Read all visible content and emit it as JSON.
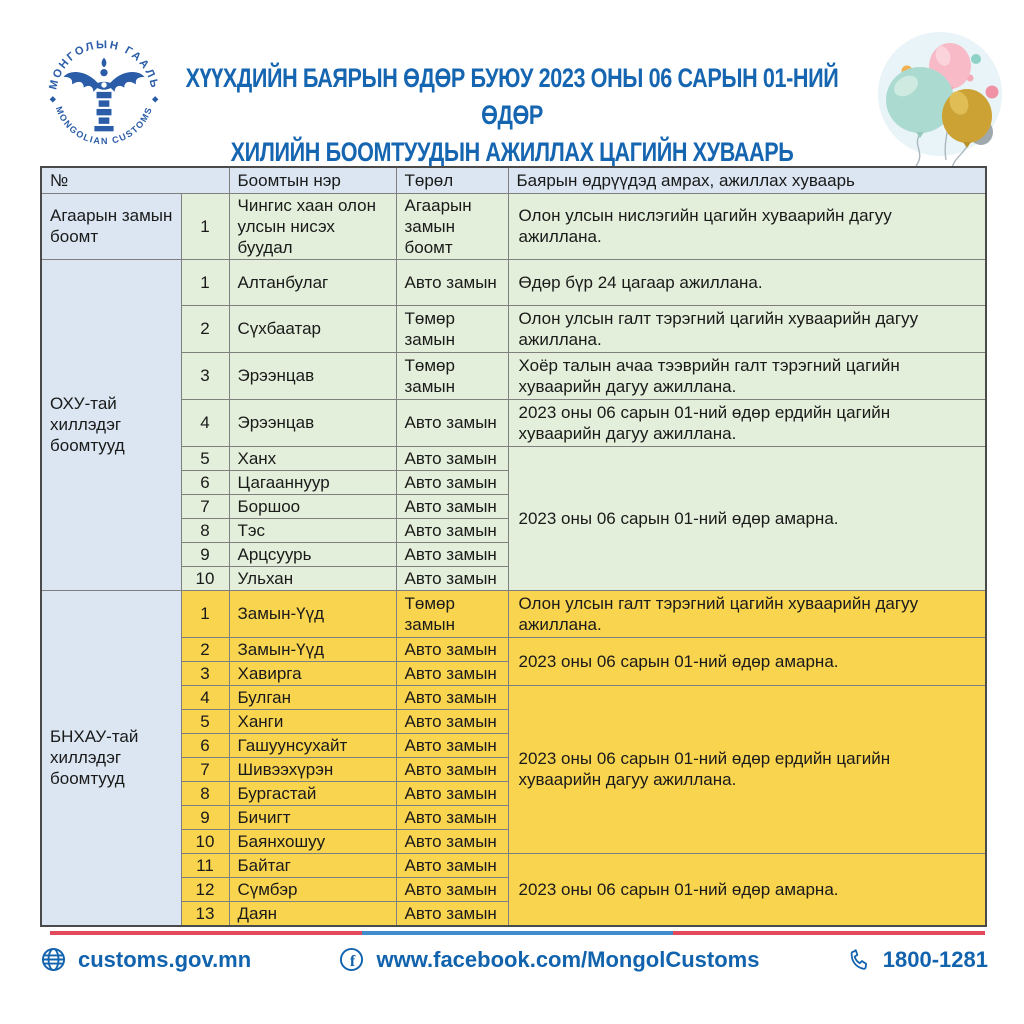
{
  "logo": {
    "arc_top": "МОНГОЛЫН ГААЛЬ",
    "arc_bottom": "MONGOLIAN CUSTOMS"
  },
  "title": {
    "line1": "ХҮҮХДИЙН БАЯРЫН ӨДӨР БУЮУ 2023 ОНЫ 06 САРЫН 01-НИЙ ӨДӨР",
    "line2": "ХИЛИЙН БООМТУУДЫН АЖИЛЛАХ ЦАГИЙН ХУВААРЬ"
  },
  "table": {
    "headers": {
      "no": "№",
      "name": "Боомтын нэр",
      "type": "Төрөл",
      "schedule": "Баярын өдрүүдэд амрах, ажиллах хуваарь"
    },
    "groups": [
      {
        "label": "Агаарын замын боомт",
        "theme": "green",
        "rows": [
          {
            "no": "1",
            "name": "Чингис хаан олон улсын нисэх буудал",
            "type": "Агаарын замын боомт",
            "schedule": "Олон улсын нислэгийн цагийн хуваарийн дагуу ажиллана.",
            "srows": 1
          }
        ]
      },
      {
        "label": "ОХУ-тай хиллэдэг боомтууд",
        "theme": "green",
        "rows": [
          {
            "no": "1",
            "name": "Алтанбулаг",
            "type": "Авто замын",
            "schedule": "Өдөр бүр 24 цагаар ажиллана.",
            "srows": 1
          },
          {
            "no": "2",
            "name": "Сүхбаатар",
            "type": "Төмөр замын",
            "schedule": "Олон улсын галт тэрэгний цагийн хуваарийн дагуу ажиллана.",
            "srows": 1
          },
          {
            "no": "3",
            "name": "Эрээнцав",
            "type": "Төмөр замын",
            "schedule": "Хоёр талын ачаа тээврийн галт тэрэгний цагийн хуваарийн дагуу ажиллана.",
            "srows": 1
          },
          {
            "no": "4",
            "name": "Эрээнцав",
            "type": "Авто замын",
            "schedule": "2023 оны 06 сарын 01-ний өдөр ердийн цагийн хуваарийн дагуу ажиллана.",
            "srows": 1
          },
          {
            "no": "5",
            "name": "Ханх",
            "type": "Авто замын",
            "schedule": "2023 оны 06 сарын 01-ний өдөр амарна.",
            "srows": 6
          },
          {
            "no": "6",
            "name": "Цагааннуур",
            "type": "Авто замын",
            "schedule": null
          },
          {
            "no": "7",
            "name": "Боршоо",
            "type": "Авто замын",
            "schedule": null
          },
          {
            "no": "8",
            "name": "Тэс",
            "type": "Авто замын",
            "schedule": null
          },
          {
            "no": "9",
            "name": "Арцсуурь",
            "type": "Авто замын",
            "schedule": null
          },
          {
            "no": "10",
            "name": "Ульхан",
            "type": "Авто замын",
            "schedule": null
          }
        ]
      },
      {
        "label": "БНХАУ-тай хиллэдэг боомтууд",
        "theme": "yellow",
        "rows": [
          {
            "no": "1",
            "name": "Замын-Үүд",
            "type": "Төмөр замын",
            "schedule": "Олон улсын галт тэрэгний цагийн хуваарийн дагуу ажиллана.",
            "srows": 1
          },
          {
            "no": "2",
            "name": "Замын-Үүд",
            "type": "Авто замын",
            "schedule": "2023 оны 06 сарын 01-ний өдөр амарна.",
            "srows": 2
          },
          {
            "no": "3",
            "name": "Хавирга",
            "type": "Авто замын",
            "schedule": null
          },
          {
            "no": "4",
            "name": "Булган",
            "type": "Авто замын",
            "schedule": "2023 оны 06 сарын 01-ний өдөр ердийн цагийн хуваарийн дагуу ажиллана.",
            "srows": 7
          },
          {
            "no": "5",
            "name": "Ханги",
            "type": "Авто замын",
            "schedule": null
          },
          {
            "no": "6",
            "name": "Гашуунсухайт",
            "type": "Авто замын",
            "schedule": null
          },
          {
            "no": "7",
            "name": "Шивээхүрэн",
            "type": "Авто замын",
            "schedule": null
          },
          {
            "no": "8",
            "name": "Бургастай",
            "type": "Авто замын",
            "schedule": null
          },
          {
            "no": "9",
            "name": "Бичигт",
            "type": "Авто замын",
            "schedule": null
          },
          {
            "no": "10",
            "name": "Баянхошуу",
            "type": "Авто замын",
            "schedule": null
          },
          {
            "no": "11",
            "name": "Байтаг",
            "type": "Авто замын",
            "schedule": "2023 оны 06 сарын 01-ний өдөр амарна.",
            "srows": 3
          },
          {
            "no": "12",
            "name": "Сүмбэр",
            "type": "Авто замын",
            "schedule": null
          },
          {
            "no": "13",
            "name": "Даян",
            "type": "Авто замын",
            "schedule": null
          }
        ]
      }
    ]
  },
  "footer": {
    "website": "customs.gov.mn",
    "facebook": "www.facebook.com/MongolCustoms",
    "phone": "1800-1281"
  },
  "colors": {
    "title_blue": "#1565b1",
    "footer_blue": "#1263ae",
    "header_cell_bg": "#dbe6f2",
    "green_cell_bg": "#e3efda",
    "yellow_cell_bg": "#f9d44f",
    "divider_red": "#e2495b",
    "divider_blue": "#3f8dcc"
  }
}
